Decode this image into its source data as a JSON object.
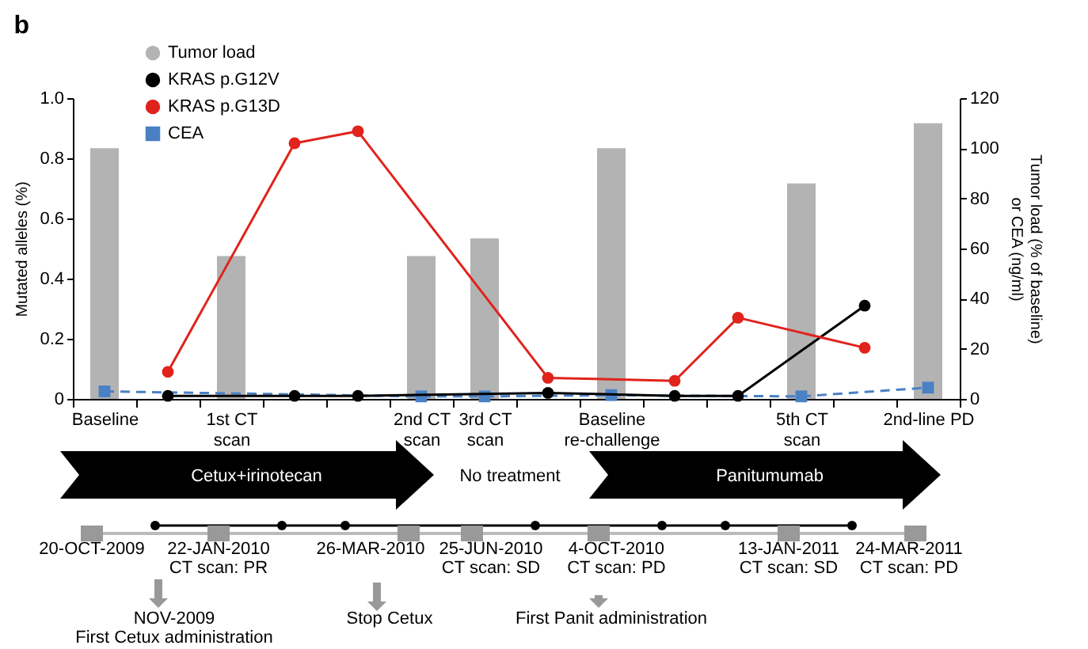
{
  "chart_data": {
    "type": "line",
    "title": "b",
    "categories": [
      "Baseline",
      null,
      "1st CT\nscan",
      null,
      null,
      "2nd CT\nscan",
      "3rd CT\nscan",
      null,
      "Baseline\nre-challenge",
      null,
      null,
      "5th CT\nscan",
      null,
      "2nd-line PD"
    ],
    "ylabel": "Mutated alleles (%)",
    "y2label": "Tumor load (% of baseline)\nor CEA (ng/ml)",
    "ylim": [
      0,
      1
    ],
    "yticks": [
      0,
      0.2,
      0.4,
      0.6,
      0.8,
      {
        "value": 1,
        "label": "1.0"
      }
    ],
    "y2lim": [
      0,
      120
    ],
    "y2ticks": [
      0,
      20,
      40,
      60,
      80,
      100,
      120
    ],
    "legend": "top left",
    "series": [
      {
        "name": "Tumor load",
        "type": "bar",
        "axis": "y2",
        "color": "#b3b3b3",
        "values": [
          100,
          null,
          57,
          null,
          null,
          57,
          64,
          null,
          100,
          null,
          null,
          86,
          null,
          110
        ]
      },
      {
        "name": "KRAS p.G12V",
        "color": "#000000",
        "marker": "circle",
        "line_style": "solid",
        "values": [
          null,
          0.01,
          null,
          0.01,
          0.01,
          null,
          null,
          0.02,
          null,
          0.01,
          0.01,
          null,
          0.31,
          null
        ]
      },
      {
        "name": "KRAS p.G13D",
        "color": "#e0231c",
        "marker": "circle",
        "line_style": "solid",
        "values": [
          null,
          0.09,
          null,
          0.85,
          0.89,
          null,
          null,
          0.07,
          null,
          0.06,
          0.27,
          null,
          0.17,
          null
        ]
      },
      {
        "name": "CEA",
        "axis": "y2",
        "color": "#4a80c4",
        "marker": "square",
        "line_style": "dashed",
        "values": [
          3,
          null,
          null,
          null,
          null,
          1,
          1,
          null,
          1.5,
          null,
          null,
          1,
          null,
          4.5
        ]
      }
    ],
    "annotations": [
      "Cetux+irinotecan",
      "No treatment",
      "Panitumumab",
      "20-OCT-2009",
      "22-JAN-2010",
      "CT scan: PR",
      "26-MAR-2010",
      "25-JUN-2010",
      "CT scan: SD",
      "4-OCT-2010",
      "CT scan: PD",
      "13-JAN-2011",
      "CT scan: SD",
      "24-MAR-2011",
      "CT scan: PD",
      "NOV-2009",
      "First Cetux administration",
      "Stop Cetux",
      "First Panit administration"
    ]
  }
}
